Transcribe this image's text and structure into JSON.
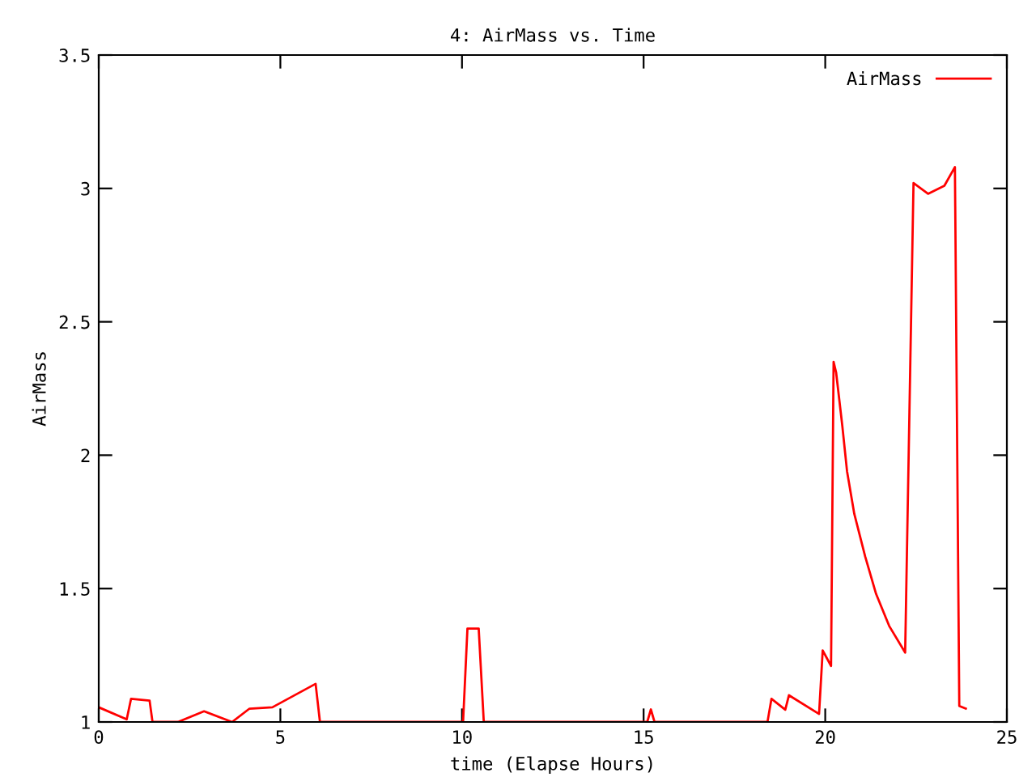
{
  "chart_data": {
    "type": "line",
    "title": "4: AirMass vs. Time",
    "xlabel": "time (Elapse Hours)",
    "ylabel": "AirMass",
    "xlim": [
      0,
      25
    ],
    "ylim": [
      1,
      3.5
    ],
    "xticks": [
      0,
      5,
      10,
      15,
      20,
      25
    ],
    "yticks": [
      1,
      1.5,
      2,
      2.5,
      3,
      3.5
    ],
    "grid": false,
    "legend": "top right",
    "series": [
      {
        "name": "AirMass",
        "color": "#ff0000",
        "x": [
          0,
          0.77,
          0.89,
          1.4,
          1.48,
          2.18,
          2.9,
          3.67,
          4.15,
          4.78,
          5.97,
          6.09,
          10.03,
          10.15,
          10.46,
          10.6,
          15.1,
          15.2,
          15.3,
          18.41,
          18.52,
          18.9,
          19.0,
          19.83,
          19.93,
          20.16,
          20.23,
          20.3,
          20.47,
          20.6,
          20.8,
          21.1,
          21.4,
          21.76,
          22.2,
          22.43,
          22.83,
          23.28,
          23.57,
          23.69,
          23.87
        ],
        "values": [
          1.055,
          1.01,
          1.087,
          1.08,
          1.0,
          1.0,
          1.04,
          1.0,
          1.05,
          1.055,
          1.143,
          1.0,
          1.0,
          1.35,
          1.35,
          1.0,
          1.0,
          1.047,
          1.0,
          1.0,
          1.087,
          1.046,
          1.1,
          1.03,
          1.268,
          1.21,
          2.35,
          2.31,
          2.11,
          1.94,
          1.78,
          1.62,
          1.48,
          1.36,
          1.26,
          3.02,
          2.98,
          3.01,
          3.08,
          1.06,
          1.05
        ]
      }
    ]
  }
}
